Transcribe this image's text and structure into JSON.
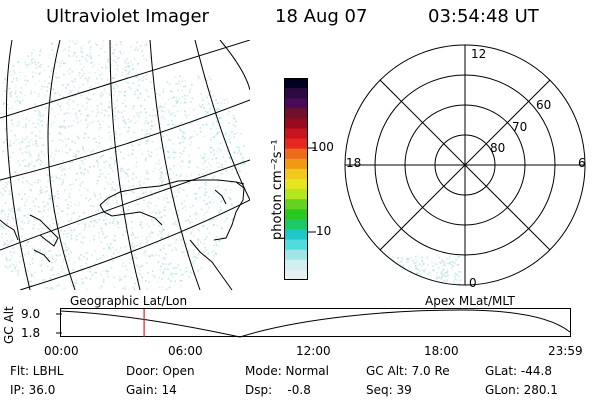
{
  "header": {
    "title": "Ultraviolet Imager",
    "date": "18 Aug 07",
    "time": "03:54:48 UT"
  },
  "colorbar": {
    "unit_label": "photon cm⁻²s⁻¹",
    "ticks": [
      "100",
      "10"
    ],
    "colors": [
      "#000020",
      "#2a0a40",
      "#4a0a5a",
      "#70102a",
      "#9a0a1e",
      "#c8141e",
      "#e8281e",
      "#f06a1e",
      "#f09a14",
      "#f0c81e",
      "#e6e61e",
      "#b4e61e",
      "#64d21e",
      "#28c81e",
      "#1ec864",
      "#1ec8c8",
      "#50dcdc",
      "#a0e6e6",
      "#d2eeee",
      "#e6f2f2"
    ]
  },
  "polar_plot": {
    "mlt_labels": {
      "top": "12",
      "left": "18",
      "right": "6",
      "bottom": "0"
    },
    "lat_labels": [
      "60",
      "70",
      "80"
    ]
  },
  "timeline": {
    "y_axis_label": "GC Alt",
    "y_ticks": [
      "9.0",
      "1.8"
    ],
    "left_caption": "Geographic Lat/Lon",
    "right_caption": "Apex MLat/MLT",
    "x_ticks": [
      "00:00",
      "06:00",
      "12:00",
      "18:00",
      "23:59"
    ],
    "marker_time": "03:54:48"
  },
  "info": {
    "flt": "Flt: LBHL",
    "ip": "IP: 36.0",
    "door": "Door: Open",
    "gain": "Gain: 14",
    "mode": "Mode: Normal",
    "dsp": "Dsp:    -0.8",
    "gcalt": "GC Alt: 7.0 Re",
    "seq": "Seq: 39",
    "glat": "GLat: -44.8",
    "glon": "GLon: 280.1"
  },
  "colors": {
    "marker": "#e02020",
    "speckle": "#b4dede",
    "speckle_bright": "#7ae6ee"
  }
}
